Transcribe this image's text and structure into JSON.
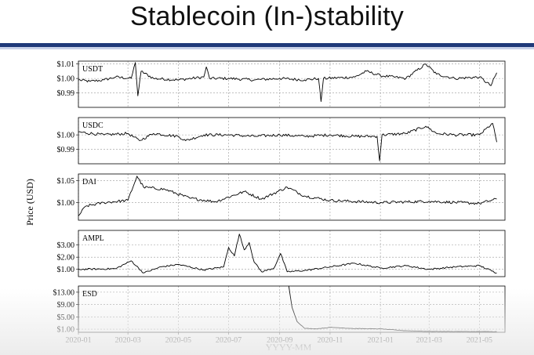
{
  "slide": {
    "title": "Stablecoin (In-)stability"
  },
  "chart_data": {
    "type": "line",
    "xlabel": "YYYY-MM",
    "ylabel": "Price (USD)",
    "x_ticks": [
      "2020-01",
      "2020-03",
      "2020-05",
      "2020-07",
      "2020-09",
      "2020-11",
      "2021-01",
      "2021-03",
      "2021-05"
    ],
    "x_range": [
      "2020-01-01",
      "2021-06-01"
    ],
    "grid": true,
    "panels": [
      {
        "label": "USDT",
        "ylim": [
          0.98,
          1.012
        ],
        "y_ticks": [
          0.99,
          1.0,
          1.01
        ],
        "y_tick_labels": [
          "$0.99",
          "$1.00",
          "$1.01"
        ],
        "series": [
          {
            "date": "2020-01-01",
            "value": 0.999
          },
          {
            "date": "2020-01-15",
            "value": 0.998
          },
          {
            "date": "2020-02-01",
            "value": 0.999
          },
          {
            "date": "2020-02-15",
            "value": 1.001
          },
          {
            "date": "2020-03-05",
            "value": 1.0
          },
          {
            "date": "2020-03-10",
            "value": 1.011
          },
          {
            "date": "2020-03-13",
            "value": 0.988
          },
          {
            "date": "2020-03-17",
            "value": 1.005
          },
          {
            "date": "2020-04-01",
            "value": 1.0
          },
          {
            "date": "2020-05-01",
            "value": 0.999
          },
          {
            "date": "2020-06-01",
            "value": 1.001
          },
          {
            "date": "2020-06-04",
            "value": 1.008
          },
          {
            "date": "2020-06-08",
            "value": 1.0
          },
          {
            "date": "2020-07-01",
            "value": 1.0
          },
          {
            "date": "2020-08-01",
            "value": 0.999
          },
          {
            "date": "2020-09-01",
            "value": 1.0
          },
          {
            "date": "2020-10-01",
            "value": 0.999
          },
          {
            "date": "2020-10-18",
            "value": 1.0
          },
          {
            "date": "2020-10-21",
            "value": 0.984
          },
          {
            "date": "2020-10-24",
            "value": 1.0
          },
          {
            "date": "2020-12-01",
            "value": 1.001
          },
          {
            "date": "2020-12-15",
            "value": 1.005
          },
          {
            "date": "2021-01-01",
            "value": 1.002
          },
          {
            "date": "2021-02-01",
            "value": 1.0
          },
          {
            "date": "2021-02-25",
            "value": 1.01
          },
          {
            "date": "2021-03-10",
            "value": 1.003
          },
          {
            "date": "2021-04-01",
            "value": 1.0
          },
          {
            "date": "2021-05-01",
            "value": 1.001
          },
          {
            "date": "2021-05-15",
            "value": 0.995
          },
          {
            "date": "2021-05-22",
            "value": 1.004
          }
        ]
      },
      {
        "label": "USDC",
        "ylim": [
          0.98,
          1.012
        ],
        "y_ticks": [
          0.99,
          1.0
        ],
        "y_tick_labels": [
          "$0.99",
          "$1.00"
        ],
        "series": [
          {
            "date": "2020-01-01",
            "value": 1.002
          },
          {
            "date": "2020-02-01",
            "value": 1.0
          },
          {
            "date": "2020-03-01",
            "value": 1.001
          },
          {
            "date": "2020-03-15",
            "value": 0.996
          },
          {
            "date": "2020-04-01",
            "value": 1.001
          },
          {
            "date": "2020-05-01",
            "value": 0.999
          },
          {
            "date": "2020-05-10",
            "value": 0.996
          },
          {
            "date": "2020-06-01",
            "value": 1.0
          },
          {
            "date": "2020-07-01",
            "value": 1.0
          },
          {
            "date": "2020-08-01",
            "value": 0.999
          },
          {
            "date": "2020-09-01",
            "value": 1.0
          },
          {
            "date": "2020-10-01",
            "value": 0.999
          },
          {
            "date": "2020-11-01",
            "value": 1.0
          },
          {
            "date": "2020-12-01",
            "value": 0.999
          },
          {
            "date": "2020-12-28",
            "value": 0.999
          },
          {
            "date": "2020-12-31",
            "value": 0.982
          },
          {
            "date": "2021-01-03",
            "value": 1.0
          },
          {
            "date": "2021-02-01",
            "value": 1.001
          },
          {
            "date": "2021-02-25",
            "value": 1.006
          },
          {
            "date": "2021-03-10",
            "value": 1.001
          },
          {
            "date": "2021-04-01",
            "value": 1.0
          },
          {
            "date": "2021-05-01",
            "value": 1.0
          },
          {
            "date": "2021-05-17",
            "value": 1.008
          },
          {
            "date": "2021-05-22",
            "value": 0.995
          }
        ]
      },
      {
        "label": "DAI",
        "ylim": [
          0.96,
          1.065
        ],
        "y_ticks": [
          1.0,
          1.05
        ],
        "y_tick_labels": [
          "$1.00",
          "$1.05"
        ],
        "series": [
          {
            "date": "2020-01-01",
            "value": 0.97
          },
          {
            "date": "2020-01-10",
            "value": 0.992
          },
          {
            "date": "2020-02-01",
            "value": 1.0
          },
          {
            "date": "2020-03-01",
            "value": 1.005
          },
          {
            "date": "2020-03-12",
            "value": 1.06
          },
          {
            "date": "2020-03-20",
            "value": 1.035
          },
          {
            "date": "2020-04-15",
            "value": 1.03
          },
          {
            "date": "2020-05-15",
            "value": 1.01
          },
          {
            "date": "2020-06-15",
            "value": 1.002
          },
          {
            "date": "2020-07-20",
            "value": 1.025
          },
          {
            "date": "2020-08-10",
            "value": 1.008
          },
          {
            "date": "2020-09-10",
            "value": 1.035
          },
          {
            "date": "2020-10-01",
            "value": 1.015
          },
          {
            "date": "2020-11-01",
            "value": 1.005
          },
          {
            "date": "2021-01-01",
            "value": 1.0
          },
          {
            "date": "2021-03-01",
            "value": 1.003
          },
          {
            "date": "2021-05-01",
            "value": 0.998
          },
          {
            "date": "2021-05-22",
            "value": 1.008
          }
        ]
      },
      {
        "label": "AMPL",
        "ylim": [
          0.4,
          4.2
        ],
        "y_ticks": [
          1.0,
          2.0,
          3.0
        ],
        "y_tick_labels": [
          "$1.00",
          "$2.00",
          "$3.00"
        ],
        "series": [
          {
            "date": "2020-01-01",
            "value": 1.0
          },
          {
            "date": "2020-02-15",
            "value": 1.05
          },
          {
            "date": "2020-03-05",
            "value": 1.7
          },
          {
            "date": "2020-03-20",
            "value": 0.7
          },
          {
            "date": "2020-04-10",
            "value": 1.2
          },
          {
            "date": "2020-05-01",
            "value": 1.4
          },
          {
            "date": "2020-06-01",
            "value": 0.95
          },
          {
            "date": "2020-06-25",
            "value": 1.2
          },
          {
            "date": "2020-07-01",
            "value": 2.8
          },
          {
            "date": "2020-07-08",
            "value": 2.1
          },
          {
            "date": "2020-07-14",
            "value": 3.9
          },
          {
            "date": "2020-07-20",
            "value": 2.6
          },
          {
            "date": "2020-07-26",
            "value": 3.2
          },
          {
            "date": "2020-08-01",
            "value": 1.6
          },
          {
            "date": "2020-08-10",
            "value": 0.8
          },
          {
            "date": "2020-08-25",
            "value": 1.1
          },
          {
            "date": "2020-09-02",
            "value": 2.3
          },
          {
            "date": "2020-09-10",
            "value": 0.8
          },
          {
            "date": "2020-10-01",
            "value": 0.9
          },
          {
            "date": "2020-11-01",
            "value": 1.2
          },
          {
            "date": "2020-12-01",
            "value": 1.5
          },
          {
            "date": "2021-01-01",
            "value": 1.1
          },
          {
            "date": "2021-02-01",
            "value": 1.3
          },
          {
            "date": "2021-03-01",
            "value": 1.0
          },
          {
            "date": "2021-04-01",
            "value": 1.2
          },
          {
            "date": "2021-05-01",
            "value": 1.3
          },
          {
            "date": "2021-05-22",
            "value": 0.7
          }
        ]
      },
      {
        "label": "ESD",
        "ylim": [
          0.0,
          15.0
        ],
        "y_ticks": [
          1.0,
          5.0,
          9.0,
          13.0
        ],
        "y_tick_labels": [
          "$1.00",
          "$5.00",
          "$9.00",
          "$13.00"
        ],
        "series": [
          {
            "date": "2020-09-12",
            "value": 15.0
          },
          {
            "date": "2020-09-16",
            "value": 8.0
          },
          {
            "date": "2020-09-22",
            "value": 3.5
          },
          {
            "date": "2020-10-01",
            "value": 1.3
          },
          {
            "date": "2020-10-15",
            "value": 1.1
          },
          {
            "date": "2020-11-01",
            "value": 1.6
          },
          {
            "date": "2020-12-01",
            "value": 1.2
          },
          {
            "date": "2021-01-01",
            "value": 1.1
          },
          {
            "date": "2021-02-01",
            "value": 0.5
          },
          {
            "date": "2021-03-01",
            "value": 0.3
          },
          {
            "date": "2021-05-22",
            "value": 0.2
          }
        ]
      }
    ]
  }
}
